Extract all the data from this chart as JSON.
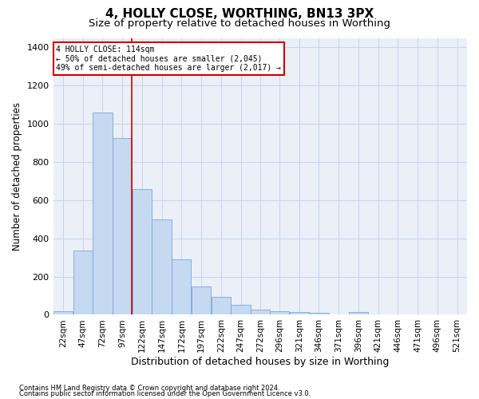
{
  "title": "4, HOLLY CLOSE, WORTHING, BN13 3PX",
  "subtitle": "Size of property relative to detached houses in Worthing",
  "xlabel": "Distribution of detached houses by size in Worthing",
  "ylabel": "Number of detached properties",
  "footer_line1": "Contains HM Land Registry data © Crown copyright and database right 2024.",
  "footer_line2": "Contains public sector information licensed under the Open Government Licence v3.0.",
  "bin_labels": [
    "22sqm",
    "47sqm",
    "72sqm",
    "97sqm",
    "122sqm",
    "147sqm",
    "172sqm",
    "197sqm",
    "222sqm",
    "247sqm",
    "272sqm",
    "296sqm",
    "321sqm",
    "346sqm",
    "371sqm",
    "396sqm",
    "421sqm",
    "446sqm",
    "471sqm",
    "496sqm",
    "521sqm"
  ],
  "bin_starts": [
    22,
    47,
    72,
    97,
    122,
    147,
    172,
    197,
    222,
    247,
    272,
    296,
    321,
    346,
    371,
    396,
    421,
    446,
    471,
    496
  ],
  "bin_width": 25,
  "bar_values": [
    20,
    335,
    1060,
    925,
    660,
    500,
    290,
    150,
    95,
    50,
    25,
    20,
    15,
    10,
    0,
    15,
    0,
    0,
    0,
    0
  ],
  "bar_color": "#c5d9f1",
  "bar_edge_color": "#7ba7d4",
  "annotation_line1": "4 HOLLY CLOSE: 114sqm",
  "annotation_line2": "← 50% of detached houses are smaller (2,045)",
  "annotation_line3": "49% of semi-detached houses are larger (2,017) →",
  "annotation_box_edge": "#cc0000",
  "vline_x": 122,
  "vline_color": "#cc0000",
  "ylim_max": 1450,
  "yticks": [
    0,
    200,
    400,
    600,
    800,
    1000,
    1200,
    1400
  ],
  "grid_color": "#c8d4e8",
  "bg_color": "#eaeff8",
  "title_fontsize": 11,
  "subtitle_fontsize": 9.5,
  "axis_label_fontsize": 9,
  "tick_fontsize": 7.5,
  "ylabel_fontsize": 8.5
}
